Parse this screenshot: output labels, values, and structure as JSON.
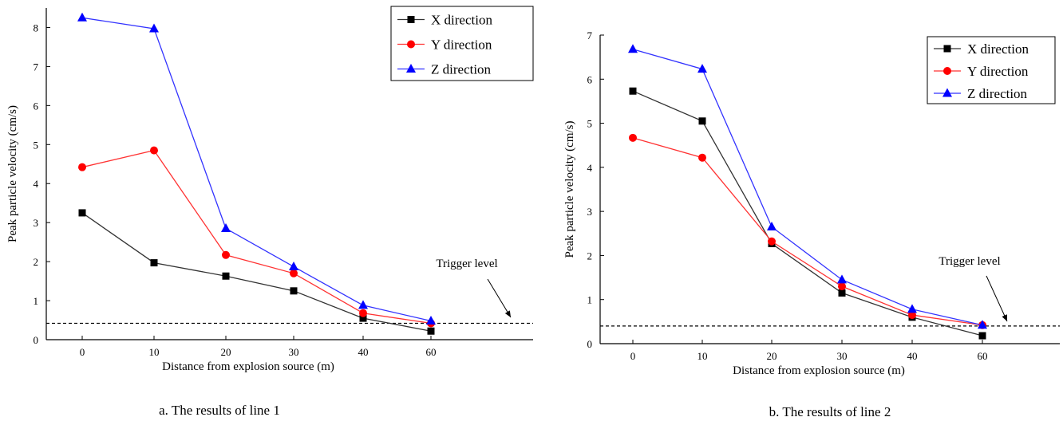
{
  "colors": {
    "x_series": "#000000",
    "y_series": "#ff0000",
    "z_series": "#0000ff",
    "x_line": "#333333",
    "y_line": "#ff3333",
    "z_line": "#3333ff"
  },
  "chart_data": [
    {
      "type": "line",
      "caption": "a. The results of line 1",
      "xlabel": "Distance from explosion source (m)",
      "ylabel": "Peak particle velocity (cm/s)",
      "categories": [
        "0",
        "10",
        "20",
        "30",
        "40",
        "60"
      ],
      "yticks": [
        "0",
        "1",
        "2",
        "3",
        "4",
        "5",
        "6",
        "7",
        "8"
      ],
      "ylim": [
        0,
        8.5
      ],
      "legend_position": "top-right",
      "grid": false,
      "trigger_label": "Trigger level",
      "trigger_value": 0.42,
      "series": [
        {
          "name": "X direction",
          "marker": "square",
          "values": [
            3.25,
            1.97,
            1.63,
            1.25,
            0.55,
            0.22
          ]
        },
        {
          "name": "Y direction",
          "marker": "circle",
          "values": [
            4.42,
            4.85,
            2.17,
            1.7,
            0.68,
            0.42
          ]
        },
        {
          "name": "Z direction",
          "marker": "triangle",
          "values": [
            8.25,
            7.97,
            2.85,
            1.87,
            0.88,
            0.48
          ]
        }
      ]
    },
    {
      "type": "line",
      "caption": "b. The results of line 2",
      "xlabel": "Distance from explosion source (m)",
      "ylabel": "Peak particle velocity (cm/s)",
      "categories": [
        "0",
        "10",
        "20",
        "30",
        "40",
        "60"
      ],
      "yticks": [
        "0",
        "1",
        "2",
        "3",
        "4",
        "5",
        "6",
        "7"
      ],
      "ylim": [
        0,
        7
      ],
      "legend_position": "top-right",
      "grid": false,
      "trigger_label": "Trigger level",
      "trigger_value": 0.4,
      "series": [
        {
          "name": "X direction",
          "marker": "square",
          "values": [
            5.73,
            5.05,
            2.27,
            1.15,
            0.6,
            0.18
          ]
        },
        {
          "name": "Y direction",
          "marker": "circle",
          "values": [
            4.67,
            4.22,
            2.32,
            1.3,
            0.65,
            0.42
          ]
        },
        {
          "name": "Z direction",
          "marker": "triangle",
          "values": [
            6.68,
            6.23,
            2.65,
            1.45,
            0.78,
            0.42
          ]
        }
      ]
    }
  ]
}
